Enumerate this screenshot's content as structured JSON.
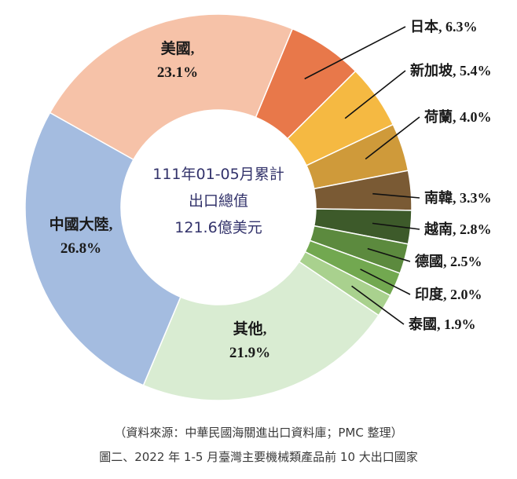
{
  "chart_data": {
    "type": "pie",
    "center_text": [
      "111年01-05月累計",
      "出口總值",
      "121.6億美元"
    ],
    "slices": [
      {
        "label": "日本",
        "value": 6.3,
        "value_text": "6.3%",
        "color": "#e8784a"
      },
      {
        "label": "新加坡",
        "value": 5.4,
        "value_text": "5.4%",
        "color": "#f5b942"
      },
      {
        "label": "荷蘭",
        "value": 4.0,
        "value_text": "4.0%",
        "color": "#cf9a3a"
      },
      {
        "label": "南韓",
        "value": 3.3,
        "value_text": "3.3%",
        "color": "#7a5a34"
      },
      {
        "label": "越南",
        "value": 2.8,
        "value_text": "2.8%",
        "color": "#3d5a2a"
      },
      {
        "label": "德國",
        "value": 2.5,
        "value_text": "2.5%",
        "color": "#5c8a3e"
      },
      {
        "label": "印度",
        "value": 2.0,
        "value_text": "2.0%",
        "color": "#72a850"
      },
      {
        "label": "泰國",
        "value": 1.9,
        "value_text": "1.9%",
        "color": "#a9d18e"
      },
      {
        "label": "其他",
        "value": 21.9,
        "value_text": "21.9%",
        "color": "#d9ecd2"
      },
      {
        "label": "中國大陸",
        "value": 26.8,
        "value_text": "26.8%",
        "color": "#a4bce0"
      },
      {
        "label": "美國",
        "value": 23.1,
        "value_text": "23.1%",
        "color": "#f6c2a8"
      }
    ]
  },
  "caption": {
    "source": "（資料來源：中華民國海關進出口資料庫；PMC 整理）",
    "title": "圖二、2022 年 1-5 月臺灣主要機械類產品前 10 大出口國家"
  }
}
